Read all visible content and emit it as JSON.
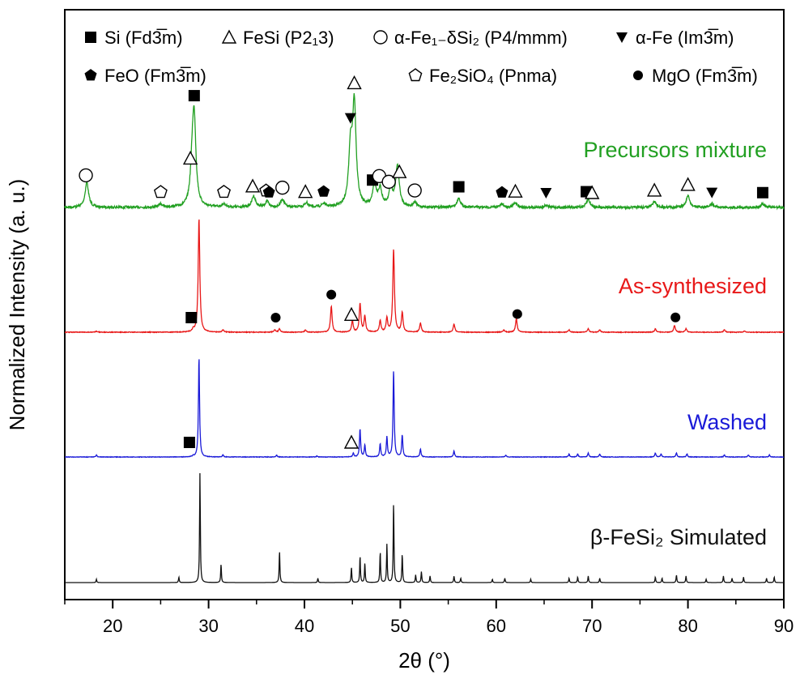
{
  "chart_data": {
    "type": "line",
    "xlabel": "2θ (°)",
    "ylabel": "Normalized Intensity (a. u.)",
    "xlim": [
      15,
      90
    ],
    "xticks": [
      20,
      30,
      40,
      50,
      60,
      70,
      80,
      90
    ],
    "grid": false,
    "legend_placement": "top",
    "legend": [
      {
        "text": "Si (Fd3̅m)",
        "marker": "filled-square"
      },
      {
        "text": "FeSi (P2₁3)",
        "marker": "open-triangle"
      },
      {
        "text": "α-Fe₁₋δSi₂ (P4/mmm)",
        "marker": "open-circle"
      },
      {
        "text": "α-Fe (Im3̅m)",
        "marker": "filled-inverted-triangle"
      },
      {
        "text": "FeO (Fm3̅m)",
        "marker": "filled-pentagon"
      },
      {
        "text": "Fe₂SiO₄ (Pnma)",
        "marker": "open-pentagon"
      },
      {
        "text": "MgO (Fm3̅m)",
        "marker": "filled-circle"
      }
    ],
    "series": [
      {
        "name": "Precursors mixture",
        "color": "#22a022",
        "peaks": [
          [
            17.3,
            0.22
          ],
          [
            25.0,
            0.03
          ],
          [
            28.3,
            0.3
          ],
          [
            28.5,
            0.72
          ],
          [
            31.6,
            0.03
          ],
          [
            34.7,
            0.1
          ],
          [
            36.1,
            0.05
          ],
          [
            37.7,
            0.07
          ],
          [
            40.2,
            0.04
          ],
          [
            42.0,
            0.03
          ],
          [
            44.8,
            0.48
          ],
          [
            45.2,
            0.88
          ],
          [
            47.3,
            0.2
          ],
          [
            47.9,
            0.15
          ],
          [
            49.0,
            0.16
          ],
          [
            49.7,
            0.36
          ],
          [
            51.5,
            0.04
          ],
          [
            56.1,
            0.08
          ],
          [
            60.6,
            0.03
          ],
          [
            62.0,
            0.04
          ],
          [
            65.2,
            0.02
          ],
          [
            69.6,
            0.07
          ],
          [
            76.5,
            0.05
          ],
          [
            80.0,
            0.1
          ],
          [
            82.5,
            0.03
          ],
          [
            87.8,
            0.03
          ]
        ],
        "markers": [
          {
            "x": 17.2,
            "symbol": "open-circle"
          },
          {
            "x": 25.0,
            "symbol": "open-pentagon"
          },
          {
            "x": 28.1,
            "symbol": "open-triangle"
          },
          {
            "x": 28.5,
            "symbol": "filled-square"
          },
          {
            "x": 31.6,
            "symbol": "open-pentagon"
          },
          {
            "x": 34.6,
            "symbol": "open-triangle"
          },
          {
            "x": 36.0,
            "symbol": "open-pentagon"
          },
          {
            "x": 36.3,
            "symbol": "filled-pentagon"
          },
          {
            "x": 37.7,
            "symbol": "open-circle"
          },
          {
            "x": 40.1,
            "symbol": "open-triangle"
          },
          {
            "x": 42.0,
            "symbol": "filled-pentagon"
          },
          {
            "x": 44.8,
            "symbol": "filled-inverted-triangle"
          },
          {
            "x": 45.2,
            "symbol": "open-triangle"
          },
          {
            "x": 47.1,
            "symbol": "filled-square"
          },
          {
            "x": 47.8,
            "symbol": "open-circle"
          },
          {
            "x": 48.8,
            "symbol": "open-circle"
          },
          {
            "x": 49.9,
            "symbol": "open-triangle"
          },
          {
            "x": 51.5,
            "symbol": "open-circle"
          },
          {
            "x": 56.1,
            "symbol": "filled-square"
          },
          {
            "x": 60.6,
            "symbol": "filled-pentagon"
          },
          {
            "x": 62.0,
            "symbol": "open-triangle"
          },
          {
            "x": 65.2,
            "symbol": "filled-inverted-triangle"
          },
          {
            "x": 69.4,
            "symbol": "filled-square"
          },
          {
            "x": 70.0,
            "symbol": "open-triangle"
          },
          {
            "x": 76.5,
            "symbol": "open-triangle"
          },
          {
            "x": 80.0,
            "symbol": "open-triangle"
          },
          {
            "x": 82.5,
            "symbol": "filled-inverted-triangle"
          },
          {
            "x": 87.8,
            "symbol": "filled-square"
          }
        ]
      },
      {
        "name": "As-synthesized",
        "color": "#e81818",
        "peaks": [
          [
            18.3,
            0.01
          ],
          [
            28.4,
            0.02
          ],
          [
            29.0,
            1.0
          ],
          [
            31.5,
            0.02
          ],
          [
            36.9,
            0.02
          ],
          [
            37.4,
            0.03
          ],
          [
            40.1,
            0.02
          ],
          [
            42.8,
            0.23
          ],
          [
            45.0,
            0.1
          ],
          [
            45.8,
            0.25
          ],
          [
            46.3,
            0.14
          ],
          [
            47.9,
            0.1
          ],
          [
            48.6,
            0.12
          ],
          [
            49.3,
            0.73
          ],
          [
            50.2,
            0.17
          ],
          [
            52.1,
            0.08
          ],
          [
            55.6,
            0.07
          ],
          [
            60.8,
            0.02
          ],
          [
            62.1,
            0.12
          ],
          [
            67.6,
            0.02
          ],
          [
            69.6,
            0.03
          ],
          [
            70.8,
            0.02
          ],
          [
            76.6,
            0.03
          ],
          [
            78.6,
            0.06
          ],
          [
            79.8,
            0.03
          ],
          [
            83.8,
            0.02
          ],
          [
            85.9,
            0.01
          ]
        ],
        "markers": [
          {
            "x": 28.2,
            "symbol": "filled-square"
          },
          {
            "x": 37.0,
            "symbol": "filled-circle"
          },
          {
            "x": 42.8,
            "symbol": "filled-circle"
          },
          {
            "x": 44.9,
            "symbol": "open-triangle"
          },
          {
            "x": 62.2,
            "symbol": "filled-circle"
          },
          {
            "x": 78.7,
            "symbol": "filled-circle"
          }
        ]
      },
      {
        "name": "Washed",
        "color": "#1a1ad8",
        "peaks": [
          [
            18.3,
            0.02
          ],
          [
            28.4,
            0.01
          ],
          [
            29.0,
            1.0
          ],
          [
            31.5,
            0.02
          ],
          [
            37.1,
            0.02
          ],
          [
            41.3,
            0.01
          ],
          [
            45.1,
            0.04
          ],
          [
            45.8,
            0.28
          ],
          [
            46.3,
            0.12
          ],
          [
            47.9,
            0.13
          ],
          [
            48.6,
            0.2
          ],
          [
            49.3,
            0.87
          ],
          [
            50.2,
            0.22
          ],
          [
            52.1,
            0.08
          ],
          [
            55.6,
            0.06
          ],
          [
            61.0,
            0.02
          ],
          [
            67.6,
            0.03
          ],
          [
            68.5,
            0.03
          ],
          [
            69.6,
            0.04
          ],
          [
            70.8,
            0.03
          ],
          [
            76.6,
            0.04
          ],
          [
            77.2,
            0.03
          ],
          [
            78.8,
            0.04
          ],
          [
            79.9,
            0.03
          ],
          [
            83.8,
            0.02
          ],
          [
            86.3,
            0.02
          ],
          [
            88.5,
            0.02
          ]
        ],
        "markers": [
          {
            "x": 28.0,
            "symbol": "filled-square"
          },
          {
            "x": 44.9,
            "symbol": "open-triangle"
          }
        ]
      },
      {
        "name": "β-FeSi₂ Simulated",
        "color": "#111111",
        "peaks": [
          [
            18.3,
            0.03
          ],
          [
            26.9,
            0.05
          ],
          [
            29.1,
            1.0
          ],
          [
            31.3,
            0.17
          ],
          [
            37.4,
            0.29
          ],
          [
            41.4,
            0.04
          ],
          [
            44.9,
            0.14
          ],
          [
            45.8,
            0.24
          ],
          [
            46.3,
            0.18
          ],
          [
            47.9,
            0.28
          ],
          [
            48.6,
            0.35
          ],
          [
            49.3,
            0.74
          ],
          [
            50.2,
            0.26
          ],
          [
            51.6,
            0.07
          ],
          [
            52.2,
            0.1
          ],
          [
            53.1,
            0.06
          ],
          [
            55.6,
            0.06
          ],
          [
            56.3,
            0.04
          ],
          [
            59.6,
            0.03
          ],
          [
            60.9,
            0.04
          ],
          [
            63.6,
            0.03
          ],
          [
            67.6,
            0.04
          ],
          [
            68.5,
            0.05
          ],
          [
            69.6,
            0.06
          ],
          [
            70.8,
            0.04
          ],
          [
            76.6,
            0.05
          ],
          [
            77.3,
            0.04
          ],
          [
            78.8,
            0.07
          ],
          [
            79.8,
            0.06
          ],
          [
            81.9,
            0.03
          ],
          [
            83.7,
            0.06
          ],
          [
            84.6,
            0.04
          ],
          [
            85.8,
            0.05
          ],
          [
            88.2,
            0.04
          ],
          [
            89.0,
            0.05
          ]
        ],
        "markers": []
      }
    ]
  }
}
